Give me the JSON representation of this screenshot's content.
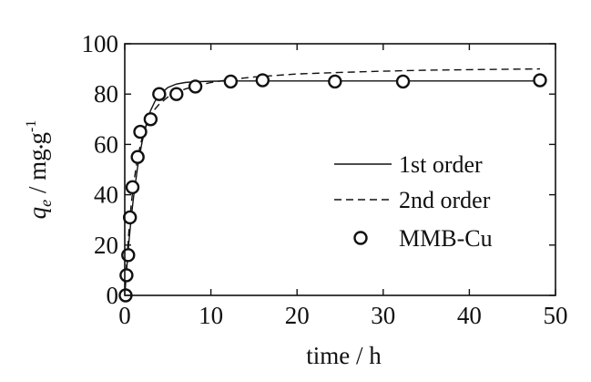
{
  "chart_data": {
    "type": "scatter",
    "xlabel": "time / h",
    "ylabel": {
      "symbol": "q",
      "subscript": "e",
      "unit_text": "/ mg",
      "dot": "•",
      "unit_g": "g",
      "exponent": "-1"
    },
    "xlim": [
      0,
      50
    ],
    "ylim": [
      0,
      100
    ],
    "xticks": [
      0,
      10,
      20,
      30,
      40,
      50
    ],
    "yticks": [
      0,
      20,
      40,
      60,
      80,
      100
    ],
    "grid": false,
    "legend_position": "right",
    "series": [
      {
        "name": "MMB-Cu",
        "kind": "markers",
        "marker": "open-circle",
        "x": [
          0.1,
          0.2,
          0.4,
          0.6,
          0.9,
          1.5,
          1.8,
          3.0,
          4.0,
          6.0,
          8.2,
          12.3,
          16.0,
          24.4,
          32.3,
          48.2
        ],
        "y": [
          0,
          8,
          16,
          31,
          43,
          55,
          65,
          70,
          80,
          80,
          83,
          85,
          85.5,
          85,
          85,
          85.5
        ]
      },
      {
        "name": "1st order",
        "kind": "line",
        "dash": "solid",
        "x": [
          0,
          0.25,
          0.5,
          0.75,
          1,
          1.5,
          2,
          2.5,
          3,
          3.5,
          4,
          5,
          6,
          7,
          8,
          10,
          12,
          15,
          20,
          25,
          30,
          35,
          40,
          45,
          48.2
        ],
        "y": [
          0,
          11.7,
          21.9,
          30.8,
          38.5,
          51.2,
          60.8,
          68.0,
          73.5,
          77.1,
          79.6,
          82.6,
          84.0,
          84.6,
          84.9,
          85.1,
          85.2,
          85.2,
          85.2,
          85.2,
          85.2,
          85.2,
          85.2,
          85.2,
          85.2
        ]
      },
      {
        "name": "2nd order",
        "kind": "line",
        "dash": "dashed",
        "x": [
          0,
          0.25,
          0.5,
          0.75,
          1,
          1.5,
          2,
          2.5,
          3,
          3.5,
          4,
          5,
          6,
          7,
          8,
          10,
          12,
          15,
          20,
          25,
          30,
          35,
          40,
          45,
          48.2
        ],
        "y": [
          0,
          14.5,
          26.5,
          36.2,
          43.8,
          55.0,
          62.4,
          67.5,
          71.3,
          74.0,
          76.0,
          78.8,
          80.6,
          82.0,
          83.0,
          84.6,
          85.7,
          86.8,
          88.0,
          88.6,
          89.1,
          89.5,
          89.7,
          89.9,
          90.0
        ]
      }
    ]
  }
}
